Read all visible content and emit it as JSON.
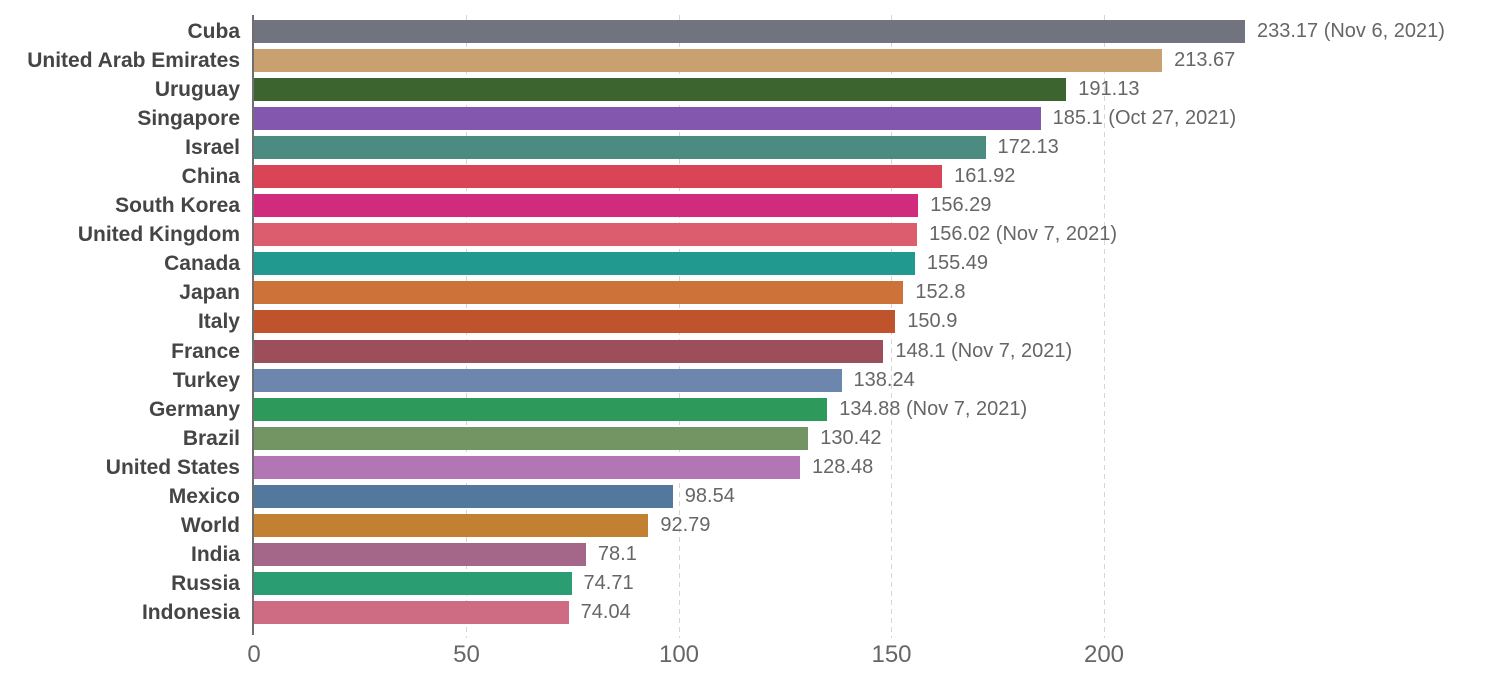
{
  "chart_data": {
    "type": "bar",
    "orientation": "horizontal",
    "grid": "vertical-dashed",
    "legend": "none",
    "x_ticks": [
      0,
      50,
      100,
      150,
      200
    ],
    "x_tick_labels": [
      "0",
      "50",
      "100",
      "150",
      "200"
    ],
    "xlim": [
      0,
      233.17
    ],
    "rows": [
      {
        "country": "Cuba",
        "value": 233.17,
        "label": "233.17 (Nov 6, 2021)",
        "color": "#71747e"
      },
      {
        "country": "United Arab Emirates",
        "value": 213.67,
        "label": "213.67",
        "color": "#c9a06f"
      },
      {
        "country": "Uruguay",
        "value": 191.13,
        "label": "191.13",
        "color": "#3b642f"
      },
      {
        "country": "Singapore",
        "value": 185.1,
        "label": "185.1 (Oct 27, 2021)",
        "color": "#8257ad"
      },
      {
        "country": "Israel",
        "value": 172.13,
        "label": "172.13",
        "color": "#4b8b81"
      },
      {
        "country": "China",
        "value": 161.92,
        "label": "161.92",
        "color": "#d94556"
      },
      {
        "country": "South Korea",
        "value": 156.29,
        "label": "156.29",
        "color": "#d02b7d"
      },
      {
        "country": "United Kingdom",
        "value": 156.02,
        "label": "156.02 (Nov 7, 2021)",
        "color": "#dc5d6d"
      },
      {
        "country": "Canada",
        "value": 155.49,
        "label": "155.49",
        "color": "#21998f"
      },
      {
        "country": "Japan",
        "value": 152.8,
        "label": "152.8",
        "color": "#cd7339"
      },
      {
        "country": "Italy",
        "value": 150.9,
        "label": "150.9",
        "color": "#bf532c"
      },
      {
        "country": "France",
        "value": 148.1,
        "label": "148.1 (Nov 7, 2021)",
        "color": "#9c4f5a"
      },
      {
        "country": "Turkey",
        "value": 138.24,
        "label": "138.24",
        "color": "#6d86ae"
      },
      {
        "country": "Germany",
        "value": 134.88,
        "label": "134.88 (Nov 7, 2021)",
        "color": "#2d9a5c"
      },
      {
        "country": "Brazil",
        "value": 130.42,
        "label": "130.42",
        "color": "#739563"
      },
      {
        "country": "United States",
        "value": 128.48,
        "label": "128.48",
        "color": "#b376b5"
      },
      {
        "country": "Mexico",
        "value": 98.54,
        "label": "98.54",
        "color": "#53789e"
      },
      {
        "country": "World",
        "value": 92.79,
        "label": "92.79",
        "color": "#c28033"
      },
      {
        "country": "India",
        "value": 78.1,
        "label": "78.1",
        "color": "#a4678a"
      },
      {
        "country": "Russia",
        "value": 74.71,
        "label": "74.71",
        "color": "#2b9d73"
      },
      {
        "country": "Indonesia",
        "value": 74.04,
        "label": "74.04",
        "color": "#cd6c83"
      }
    ],
    "text_colors": {
      "country_label": "#454545",
      "value_label": "#666666",
      "axis_tick_label": "#666666"
    },
    "gridline_color": "#d6d6d6",
    "axis_line_color": "#6f6f6f"
  }
}
